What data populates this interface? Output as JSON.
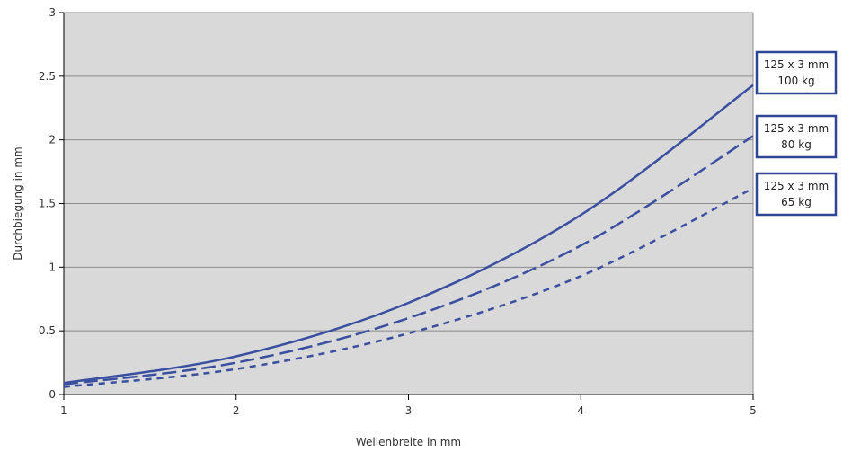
{
  "chart_data": {
    "type": "line",
    "title": "",
    "xlabel": "Wellenbreite in mm",
    "ylabel": "Durchbiegung in mm",
    "x": [
      1,
      2,
      3,
      4,
      5
    ],
    "xlim": [
      1,
      5
    ],
    "ylim": [
      0,
      3
    ],
    "x_ticks": [
      "1",
      "2",
      "3",
      "4",
      "5"
    ],
    "y_ticks": [
      "0",
      "0.5",
      "1",
      "1.5",
      "2",
      "2.5",
      "3"
    ],
    "grid": true,
    "legend_placement": "right",
    "series": [
      {
        "name_line1": "125 x 3 mm",
        "name_line2": "100 kg",
        "style": "solid",
        "values": [
          0.09,
          0.3,
          0.72,
          1.41,
          2.43
        ]
      },
      {
        "name_line1": "125 x 3 mm",
        "name_line2": "80 kg",
        "style": "dashed",
        "values": [
          0.08,
          0.25,
          0.6,
          1.17,
          2.03
        ]
      },
      {
        "name_line1": "125 x 3 mm",
        "name_line2": "65 kg",
        "style": "dotted",
        "values": [
          0.06,
          0.2,
          0.48,
          0.93,
          1.62
        ]
      }
    ],
    "colors": {
      "line": "#3a4fa0",
      "plot_bg": "#d9d9d9",
      "grid": "#8c8c8c",
      "legend_border": "#2f4596"
    }
  }
}
